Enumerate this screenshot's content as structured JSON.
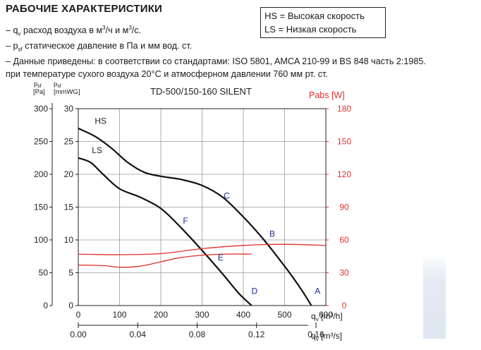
{
  "header": {
    "title": "РАБОЧИЕ ХАРАКТЕРИСТИКИ",
    "note1_dash": "– q",
    "note1_sub": "v",
    "note1_text": " расход воздуха в м",
    "note1_sup": "3",
    "note1_text2": "/ч и м",
    "note1_sup2": "3",
    "note1_text3": "/с.",
    "note2_dash": "– p",
    "note2_sub": "sf",
    "note2_text": "  статическое давление в Па и мм вод. ст.",
    "note3": "– Данные приведены: в соответствии со стандартами: ISO 5801, AMCA 210-99 и BS 848 часть 2:1985.",
    "note4": "  при температуре сухого воздуха 20°C и атмосферном давлении 760 мм рт. ст."
  },
  "legend_box": {
    "hs": "HS = Высокая скорость",
    "ls": "LS = Низкая скорость"
  },
  "chart_data": {
    "type": "line",
    "title": "TD-500/150-160 SILENT",
    "y_left_outer": {
      "label_top": "p",
      "label_sub": "sf",
      "unit": "[Pa]",
      "ticks": [
        0,
        50,
        100,
        150,
        200,
        250,
        300
      ],
      "ylim": [
        0,
        300
      ]
    },
    "y_left_inner": {
      "label_top": "p",
      "label_sub": "sf",
      "unit": "[mmWG]",
      "ticks": [
        0,
        5,
        10,
        15,
        20,
        25,
        30
      ],
      "ylim": [
        0,
        30
      ]
    },
    "y_right": {
      "label": "Pabs [W]",
      "ticks": [
        0,
        30,
        60,
        90,
        120,
        150,
        180
      ],
      "ylim": [
        0,
        180
      ]
    },
    "x_main": {
      "label_q": "q",
      "label_sub": "v",
      "unit": "[m³/h]",
      "ticks": [
        0,
        100,
        200,
        300,
        400,
        500,
        600
      ],
      "xlim": [
        0,
        600
      ]
    },
    "x_secondary": {
      "label_q": "q",
      "label_sub": "v",
      "unit": "[m³/s]",
      "ticks": [
        "0.00",
        "0.04",
        "0.08",
        "0.12",
        "0.16"
      ],
      "tick_values": [
        0,
        0.04,
        0.08,
        0.12,
        0.16
      ]
    },
    "series": [
      {
        "name": "HS",
        "axis": "pressure_pa",
        "x": [
          0,
          40,
          80,
          120,
          160,
          200,
          250,
          300,
          350,
          400,
          450,
          500,
          540,
          565
        ],
        "y": [
          270,
          258,
          240,
          218,
          203,
          197,
          192,
          183,
          165,
          135,
          100,
          60,
          25,
          0
        ]
      },
      {
        "name": "LS",
        "axis": "pressure_pa",
        "x": [
          0,
          30,
          60,
          100,
          150,
          200,
          250,
          300,
          350,
          390,
          420
        ],
        "y": [
          225,
          218,
          200,
          178,
          165,
          148,
          118,
          84,
          48,
          18,
          0
        ]
      },
      {
        "name": "Power HS",
        "axis": "power_w",
        "x": [
          0,
          100,
          200,
          300,
          400,
          500,
          600
        ],
        "y": [
          47,
          46.5,
          47.5,
          52,
          55,
          56,
          55
        ]
      },
      {
        "name": "Power LS",
        "axis": "power_w",
        "x": [
          0,
          60,
          100,
          150,
          200,
          250,
          300,
          350,
          420
        ],
        "y": [
          37,
          36.5,
          35,
          36,
          40,
          44,
          46,
          47,
          47
        ]
      }
    ],
    "curve_points": [
      {
        "label": "A",
        "x": 580,
        "y": 18
      },
      {
        "label": "B",
        "x": 470,
        "y": 105
      },
      {
        "label": "C",
        "x": 360,
        "y": 163
      },
      {
        "label": "D",
        "x": 427,
        "y": 18
      },
      {
        "label": "E",
        "x": 345,
        "y": 69
      },
      {
        "label": "F",
        "x": 260,
        "y": 125
      }
    ],
    "series_labels": [
      {
        "label": "HS",
        "x": 40,
        "y": 277
      },
      {
        "label": "LS",
        "x": 33,
        "y": 232
      }
    ],
    "grid": true
  }
}
